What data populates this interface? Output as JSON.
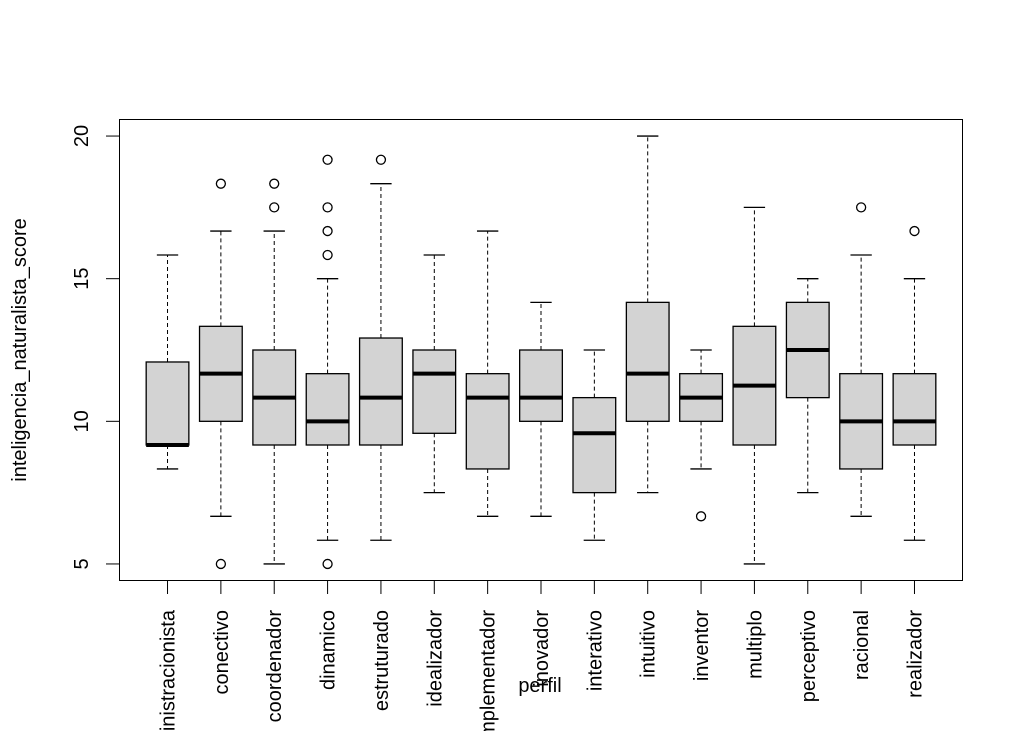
{
  "chart_data": {
    "type": "box",
    "xlabel": "perfil",
    "ylabel": "inteligencia_naturalista_score",
    "ylim": [
      4.42,
      20.58
    ],
    "yticks": [
      5,
      10,
      15,
      20
    ],
    "box_fill": "#d3d3d3",
    "grid": false,
    "legend": "none",
    "categories": [
      "administracionista",
      "conectivo",
      "coordenador",
      "dinamico",
      "estruturado",
      "idealizador",
      "implementador",
      "inovador",
      "interativo",
      "intuitivo",
      "inventor",
      "multiplo",
      "perceptivo",
      "racional",
      "realizador"
    ],
    "boxes": [
      {
        "lower": 8.33,
        "q1": 9.17,
        "median": 9.17,
        "q3": 12.08,
        "upper": 15.83,
        "outliers": []
      },
      {
        "lower": 6.67,
        "q1": 10.0,
        "median": 11.67,
        "q3": 13.33,
        "upper": 16.67,
        "outliers": [
          5.0,
          18.33
        ]
      },
      {
        "lower": 5.0,
        "q1": 9.17,
        "median": 10.83,
        "q3": 12.5,
        "upper": 16.67,
        "outliers": [
          17.5,
          18.33
        ]
      },
      {
        "lower": 5.83,
        "q1": 9.17,
        "median": 10.0,
        "q3": 11.67,
        "upper": 15.0,
        "outliers": [
          5.0,
          15.83,
          16.67,
          17.5,
          19.17
        ]
      },
      {
        "lower": 5.83,
        "q1": 9.17,
        "median": 10.83,
        "q3": 12.92,
        "upper": 18.33,
        "outliers": [
          19.17
        ]
      },
      {
        "lower": 7.5,
        "q1": 9.58,
        "median": 11.67,
        "q3": 12.5,
        "upper": 15.83,
        "outliers": []
      },
      {
        "lower": 6.67,
        "q1": 8.33,
        "median": 10.83,
        "q3": 11.67,
        "upper": 16.67,
        "outliers": []
      },
      {
        "lower": 6.67,
        "q1": 10.0,
        "median": 10.83,
        "q3": 12.5,
        "upper": 14.17,
        "outliers": []
      },
      {
        "lower": 5.83,
        "q1": 7.5,
        "median": 9.58,
        "q3": 10.83,
        "upper": 12.5,
        "outliers": []
      },
      {
        "lower": 7.5,
        "q1": 10.0,
        "median": 11.67,
        "q3": 14.17,
        "upper": 20.0,
        "outliers": []
      },
      {
        "lower": 8.33,
        "q1": 10.0,
        "median": 10.83,
        "q3": 11.67,
        "upper": 12.5,
        "outliers": [
          6.67
        ]
      },
      {
        "lower": 5.0,
        "q1": 9.17,
        "median": 11.25,
        "q3": 13.33,
        "upper": 17.5,
        "outliers": []
      },
      {
        "lower": 7.5,
        "q1": 10.83,
        "median": 12.5,
        "q3": 14.17,
        "upper": 15.0,
        "outliers": []
      },
      {
        "lower": 6.67,
        "q1": 8.33,
        "median": 10.0,
        "q3": 11.67,
        "upper": 15.83,
        "outliers": [
          17.5
        ]
      },
      {
        "lower": 5.83,
        "q1": 9.17,
        "median": 10.0,
        "q3": 11.67,
        "upper": 15.0,
        "outliers": [
          16.67
        ]
      }
    ]
  }
}
